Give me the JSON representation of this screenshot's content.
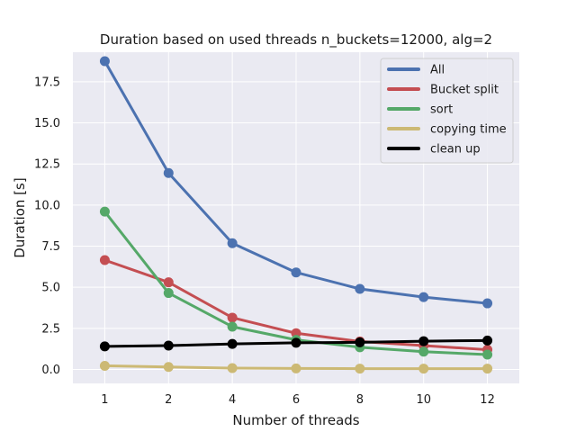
{
  "chart_data": {
    "type": "line",
    "title": "Duration based on used threads n_buckets=12000, alg=2",
    "xlabel": "Number of threads",
    "ylabel": "Duration [s]",
    "categories": [
      "1",
      "2",
      "4",
      "6",
      "8",
      "10",
      "12"
    ],
    "ylim": [
      -0.85,
      19.3
    ],
    "yticks": [
      "0.0",
      "2.5",
      "5.0",
      "7.5",
      "10.0",
      "12.5",
      "15.0",
      "17.5"
    ],
    "grid": true,
    "legend_position": "top-right",
    "series": [
      {
        "name": "All",
        "color": "#4c72b0",
        "values": [
          18.75,
          11.95,
          7.68,
          5.9,
          4.9,
          4.4,
          4.02
        ]
      },
      {
        "name": "Bucket split",
        "color": "#c44e52",
        "values": [
          6.65,
          5.3,
          3.15,
          2.2,
          1.7,
          1.45,
          1.2
        ]
      },
      {
        "name": "sort",
        "color": "#55a868",
        "values": [
          9.6,
          4.65,
          2.6,
          1.8,
          1.35,
          1.08,
          0.9
        ]
      },
      {
        "name": "copying time",
        "color": "#ccb974",
        "values": [
          0.22,
          0.15,
          0.08,
          0.06,
          0.05,
          0.05,
          0.05
        ]
      },
      {
        "name": "clean up",
        "color": "#000000",
        "values": [
          1.4,
          1.45,
          1.55,
          1.62,
          1.65,
          1.72,
          1.76
        ]
      }
    ]
  }
}
